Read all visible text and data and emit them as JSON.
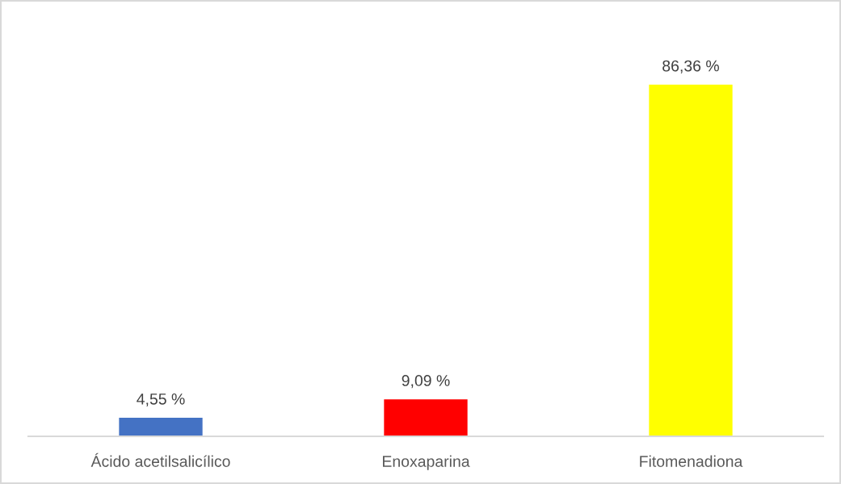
{
  "chart_data": {
    "type": "bar",
    "categories": [
      "Ácido acetilsalicílico",
      "Enoxaparina",
      "Fitomenadiona"
    ],
    "values": [
      4.55,
      9.09,
      86.36
    ],
    "colors": [
      "#4472c4",
      "#ff0000",
      "#ffff00"
    ],
    "value_labels": [
      "4,55 %",
      "9,09 %",
      "86,36 %"
    ],
    "tick_labels": "x"
  }
}
